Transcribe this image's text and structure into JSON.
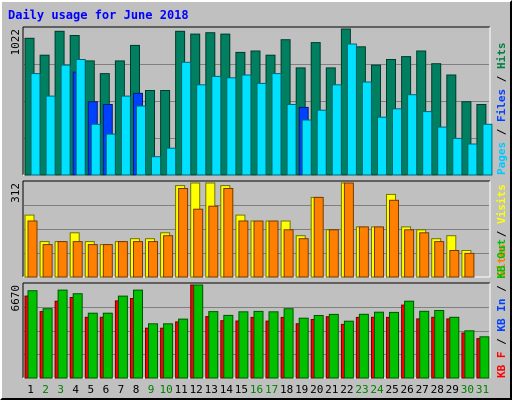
{
  "chart_data": {
    "type": "bar",
    "title": "Daily usage for June 2018",
    "days": [
      "1",
      "2",
      "3",
      "4",
      "5",
      "6",
      "7",
      "8",
      "9",
      "10",
      "11",
      "12",
      "13",
      "14",
      "15",
      "16",
      "17",
      "18",
      "19",
      "20",
      "21",
      "22",
      "23",
      "24",
      "25",
      "26",
      "27",
      "28",
      "29",
      "30",
      "31"
    ],
    "weekend_days": [
      2,
      3,
      9,
      10,
      16,
      17,
      23,
      24,
      30,
      31
    ],
    "panels": [
      {
        "name": "hits_files_pages",
        "axis_max": 1022,
        "axis_label": "1022",
        "legend": [
          "Pages",
          "Files",
          "Hits"
        ],
        "legend_colors": [
          "#00c8ff",
          "#0040ff",
          "#008040"
        ],
        "series": [
          {
            "name": "Hits",
            "color": "#008060",
            "values": [
              970,
              850,
              1020,
              990,
              810,
              720,
              810,
              920,
              600,
              600,
              1020,
              1000,
              1010,
              1000,
              870,
              880,
              850,
              960,
              760,
              940,
              760,
              1070,
              910,
              780,
              820,
              840,
              880,
              790,
              710,
              520,
              500
            ]
          },
          {
            "name": "Files",
            "color": "#0040ff",
            "values": [
              0,
              0,
              0,
              730,
              520,
              500,
              0,
              580,
              0,
              0,
              0,
              0,
              0,
              0,
              0,
              0,
              0,
              0,
              480,
              0,
              0,
              0,
              0,
              0,
              0,
              0,
              0,
              0,
              0,
              0,
              0
            ]
          },
          {
            "name": "Pages",
            "color": "#00e0ff",
            "values": [
              720,
              560,
              780,
              820,
              360,
              290,
              560,
              490,
              130,
              190,
              800,
              640,
              700,
              690,
              710,
              650,
              720,
              500,
              390,
              460,
              640,
              930,
              660,
              410,
              470,
              570,
              450,
              340,
              260,
              220,
              360
            ]
          }
        ]
      },
      {
        "name": "visits_sites",
        "axis_max": 312,
        "axis_label": "312",
        "legend": [
          "Sites",
          "Visits"
        ],
        "legend_colors": [
          "#ff8000",
          "#ffff00"
        ],
        "series": [
          {
            "name": "Visits",
            "color": "#ffff00",
            "values": [
              210,
              120,
              120,
              150,
              120,
              110,
              120,
              130,
              130,
              150,
              310,
              350,
              320,
              310,
              210,
              190,
              190,
              190,
              140,
              270,
              160,
              320,
              170,
              170,
              280,
              170,
              160,
              130,
              140,
              90,
              0
            ]
          },
          {
            "name": "Sites",
            "color": "#ff8000",
            "values": [
              190,
              110,
              120,
              120,
              110,
              110,
              120,
              120,
              120,
              140,
              300,
              230,
              240,
              300,
              190,
              190,
              190,
              160,
              130,
              270,
              160,
              320,
              170,
              170,
              260,
              160,
              150,
              120,
              90,
              80,
              0
            ]
          }
        ]
      },
      {
        "name": "kbytes",
        "axis_max": 6670,
        "axis_label": "6670",
        "legend": [
          "KB F",
          "KB In",
          "KB Out"
        ],
        "legend_colors": [
          "#ff0000",
          "#0040ff",
          "#00c000"
        ],
        "series": [
          {
            "name": "KB F",
            "color": "#ff0000",
            "values": [
              6000,
              4870,
              5630,
              5900,
              4450,
              4450,
              5650,
              5830,
              3650,
              3650,
              4110,
              6970,
              4500,
              4200,
              4180,
              4440,
              4170,
              4440,
              3980,
              4290,
              4490,
              3930,
              4440,
              4450,
              4440,
              5340,
              4330,
              4450,
              4330,
              3300,
              2890
            ]
          },
          {
            "name": "KB Out",
            "color": "#00c000",
            "values": [
              6400,
              5080,
              6440,
              6180,
              4750,
              4750,
              6000,
              6440,
              3970,
              3970,
              4320,
              7240,
              4870,
              4590,
              4850,
              4880,
              4850,
              5080,
              4380,
              4580,
              4660,
              4160,
              4670,
              4820,
              4810,
              5630,
              4890,
              4950,
              4450,
              3460,
              3020
            ]
          }
        ]
      }
    ]
  },
  "colors": {
    "background": "#c0c0c0",
    "plot_background": "#c0c0c0",
    "title": "#0000ff",
    "day_label": "#000000",
    "weekend_label": "#008000"
  }
}
